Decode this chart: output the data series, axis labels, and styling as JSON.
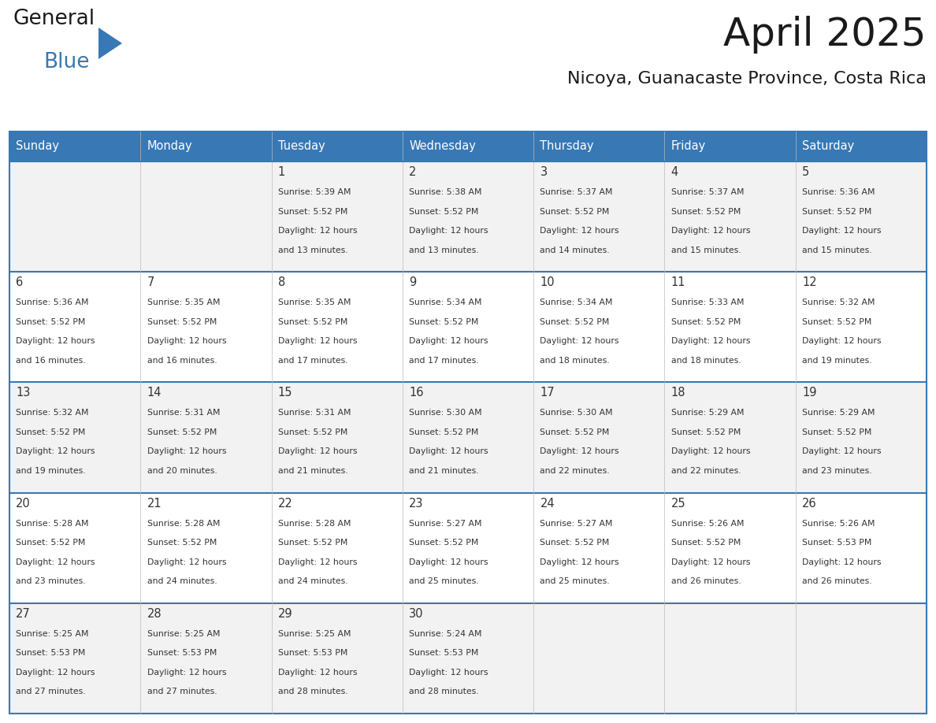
{
  "title": "April 2025",
  "subtitle": "Nicoya, Guanacaste Province, Costa Rica",
  "header_color": "#3878b4",
  "header_text_color": "#ffffff",
  "row_bg_even": "#f2f2f2",
  "row_bg_odd": "#ffffff",
  "border_color": "#3878b4",
  "text_color": "#333333",
  "day_headers": [
    "Sunday",
    "Monday",
    "Tuesday",
    "Wednesday",
    "Thursday",
    "Friday",
    "Saturday"
  ],
  "calendar_data": [
    [
      {
        "day": "",
        "sunrise": "",
        "sunset": "",
        "daylight_hours": 0,
        "daylight_minutes": 0
      },
      {
        "day": "",
        "sunrise": "",
        "sunset": "",
        "daylight_hours": 0,
        "daylight_minutes": 0
      },
      {
        "day": "1",
        "sunrise": "5:39 AM",
        "sunset": "5:52 PM",
        "daylight_hours": 12,
        "daylight_minutes": 13
      },
      {
        "day": "2",
        "sunrise": "5:38 AM",
        "sunset": "5:52 PM",
        "daylight_hours": 12,
        "daylight_minutes": 13
      },
      {
        "day": "3",
        "sunrise": "5:37 AM",
        "sunset": "5:52 PM",
        "daylight_hours": 12,
        "daylight_minutes": 14
      },
      {
        "day": "4",
        "sunrise": "5:37 AM",
        "sunset": "5:52 PM",
        "daylight_hours": 12,
        "daylight_minutes": 15
      },
      {
        "day": "5",
        "sunrise": "5:36 AM",
        "sunset": "5:52 PM",
        "daylight_hours": 12,
        "daylight_minutes": 15
      }
    ],
    [
      {
        "day": "6",
        "sunrise": "5:36 AM",
        "sunset": "5:52 PM",
        "daylight_hours": 12,
        "daylight_minutes": 16
      },
      {
        "day": "7",
        "sunrise": "5:35 AM",
        "sunset": "5:52 PM",
        "daylight_hours": 12,
        "daylight_minutes": 16
      },
      {
        "day": "8",
        "sunrise": "5:35 AM",
        "sunset": "5:52 PM",
        "daylight_hours": 12,
        "daylight_minutes": 17
      },
      {
        "day": "9",
        "sunrise": "5:34 AM",
        "sunset": "5:52 PM",
        "daylight_hours": 12,
        "daylight_minutes": 17
      },
      {
        "day": "10",
        "sunrise": "5:34 AM",
        "sunset": "5:52 PM",
        "daylight_hours": 12,
        "daylight_minutes": 18
      },
      {
        "day": "11",
        "sunrise": "5:33 AM",
        "sunset": "5:52 PM",
        "daylight_hours": 12,
        "daylight_minutes": 18
      },
      {
        "day": "12",
        "sunrise": "5:32 AM",
        "sunset": "5:52 PM",
        "daylight_hours": 12,
        "daylight_minutes": 19
      }
    ],
    [
      {
        "day": "13",
        "sunrise": "5:32 AM",
        "sunset": "5:52 PM",
        "daylight_hours": 12,
        "daylight_minutes": 19
      },
      {
        "day": "14",
        "sunrise": "5:31 AM",
        "sunset": "5:52 PM",
        "daylight_hours": 12,
        "daylight_minutes": 20
      },
      {
        "day": "15",
        "sunrise": "5:31 AM",
        "sunset": "5:52 PM",
        "daylight_hours": 12,
        "daylight_minutes": 21
      },
      {
        "day": "16",
        "sunrise": "5:30 AM",
        "sunset": "5:52 PM",
        "daylight_hours": 12,
        "daylight_minutes": 21
      },
      {
        "day": "17",
        "sunrise": "5:30 AM",
        "sunset": "5:52 PM",
        "daylight_hours": 12,
        "daylight_minutes": 22
      },
      {
        "day": "18",
        "sunrise": "5:29 AM",
        "sunset": "5:52 PM",
        "daylight_hours": 12,
        "daylight_minutes": 22
      },
      {
        "day": "19",
        "sunrise": "5:29 AM",
        "sunset": "5:52 PM",
        "daylight_hours": 12,
        "daylight_minutes": 23
      }
    ],
    [
      {
        "day": "20",
        "sunrise": "5:28 AM",
        "sunset": "5:52 PM",
        "daylight_hours": 12,
        "daylight_minutes": 23
      },
      {
        "day": "21",
        "sunrise": "5:28 AM",
        "sunset": "5:52 PM",
        "daylight_hours": 12,
        "daylight_minutes": 24
      },
      {
        "day": "22",
        "sunrise": "5:28 AM",
        "sunset": "5:52 PM",
        "daylight_hours": 12,
        "daylight_minutes": 24
      },
      {
        "day": "23",
        "sunrise": "5:27 AM",
        "sunset": "5:52 PM",
        "daylight_hours": 12,
        "daylight_minutes": 25
      },
      {
        "day": "24",
        "sunrise": "5:27 AM",
        "sunset": "5:52 PM",
        "daylight_hours": 12,
        "daylight_minutes": 25
      },
      {
        "day": "25",
        "sunrise": "5:26 AM",
        "sunset": "5:52 PM",
        "daylight_hours": 12,
        "daylight_minutes": 26
      },
      {
        "day": "26",
        "sunrise": "5:26 AM",
        "sunset": "5:53 PM",
        "daylight_hours": 12,
        "daylight_minutes": 26
      }
    ],
    [
      {
        "day": "27",
        "sunrise": "5:25 AM",
        "sunset": "5:53 PM",
        "daylight_hours": 12,
        "daylight_minutes": 27
      },
      {
        "day": "28",
        "sunrise": "5:25 AM",
        "sunset": "5:53 PM",
        "daylight_hours": 12,
        "daylight_minutes": 27
      },
      {
        "day": "29",
        "sunrise": "5:25 AM",
        "sunset": "5:53 PM",
        "daylight_hours": 12,
        "daylight_minutes": 28
      },
      {
        "day": "30",
        "sunrise": "5:24 AM",
        "sunset": "5:53 PM",
        "daylight_hours": 12,
        "daylight_minutes": 28
      },
      {
        "day": "",
        "sunrise": "",
        "sunset": "",
        "daylight_hours": 0,
        "daylight_minutes": 0
      },
      {
        "day": "",
        "sunrise": "",
        "sunset": "",
        "daylight_hours": 0,
        "daylight_minutes": 0
      },
      {
        "day": "",
        "sunrise": "",
        "sunset": "",
        "daylight_hours": 0,
        "daylight_minutes": 0
      }
    ]
  ],
  "logo_text_general": "General",
  "logo_text_blue": "Blue",
  "logo_triangle_color": "#3878b4",
  "logo_text_color": "#1a1a1a"
}
